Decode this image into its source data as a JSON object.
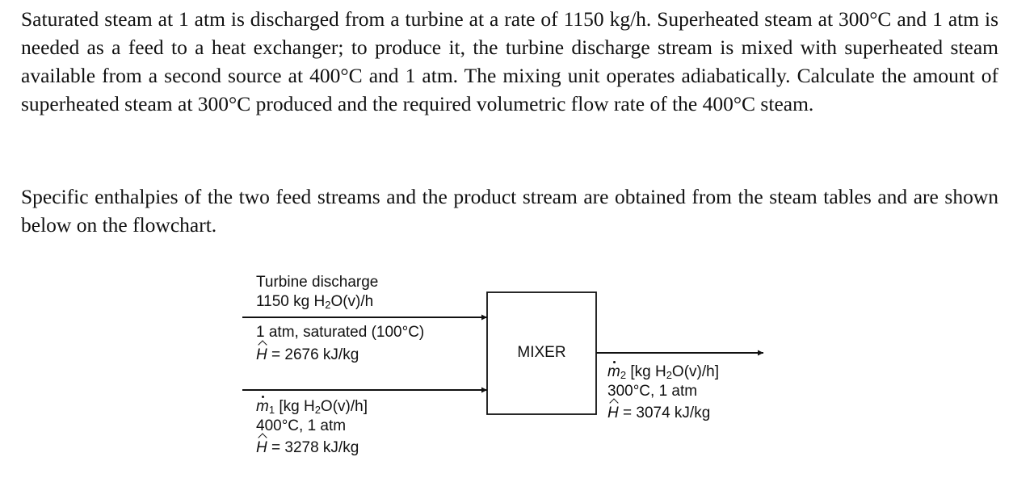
{
  "problem": {
    "paragraph1": "Saturated steam at 1 atm is discharged from a turbine at a rate of 1150 kg/h. Superheated steam at 300°C and 1 atm is needed as a feed to a heat exchanger; to produce it, the turbine discharge stream is mixed with superheated steam available from a second source at 400°C and 1 atm. The mixing unit operates adiabatically. Calculate the amount of superheated steam at 300°C produced and the required volumetric flow rate of the 400°C steam.",
    "paragraph2": "Specific enthalpies of the two feed streams and the product stream are obtained from the steam tables and are shown below on the flowchart."
  },
  "flowchart": {
    "mixer_label": "MIXER",
    "stream1": {
      "name": "Turbine discharge",
      "flow_value": "1150 kg H",
      "flow_sub": "2",
      "flow_tail": "O(v)/h",
      "condition": "1 atm, saturated (100°C)",
      "h_symbol": "H",
      "enthalpy": " = 2676 kJ/kg"
    },
    "stream2": {
      "m_symbol": "m",
      "m_sub": "1",
      "flow_head": " [kg H",
      "flow_sub": "2",
      "flow_tail": "O(v)/h]",
      "condition": "400°C, 1 atm",
      "h_symbol": "H",
      "enthalpy": " = 3278 kJ/kg"
    },
    "product": {
      "m_symbol": "m",
      "m_sub": "2",
      "flow_head": " [kg H",
      "flow_sub": "2",
      "flow_tail": "O(v)/h]",
      "condition": "300°C, 1 atm",
      "h_symbol": "H",
      "enthalpy": " = 3074 kJ/kg"
    }
  }
}
